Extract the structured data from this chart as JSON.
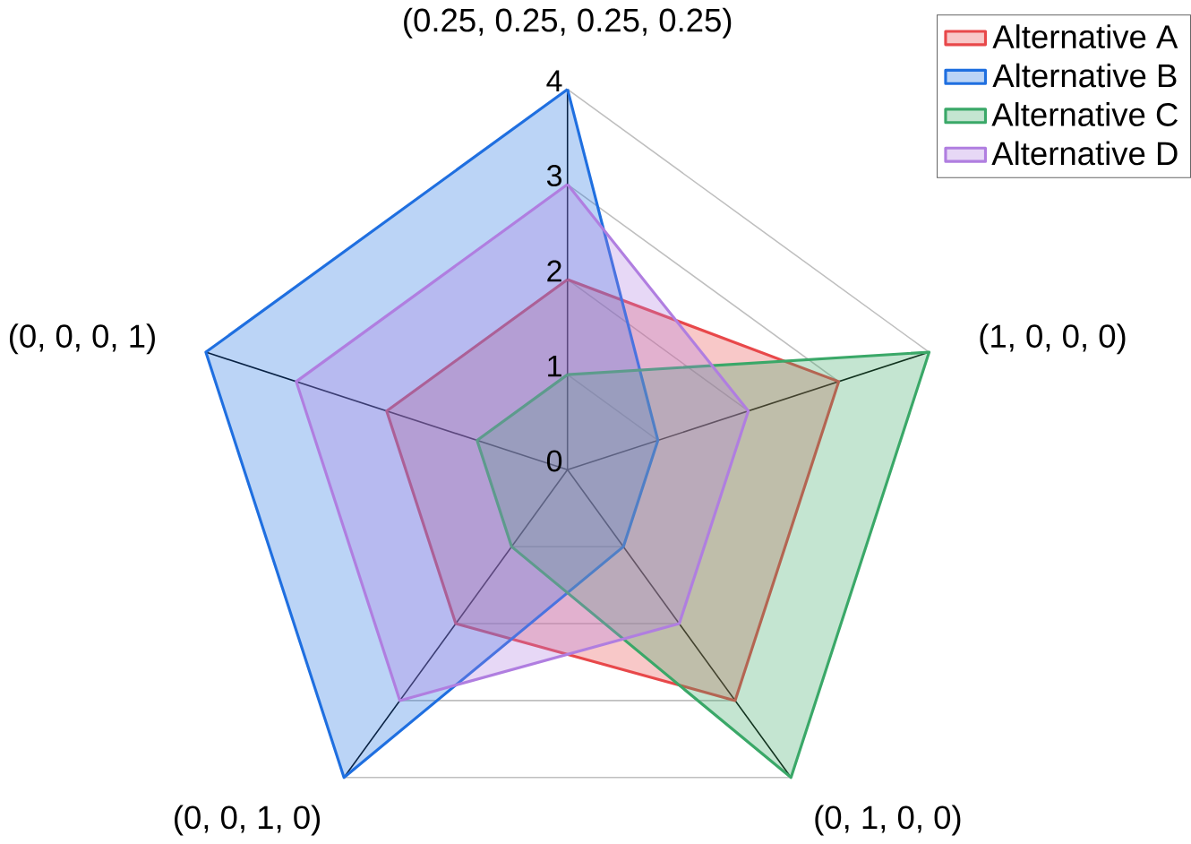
{
  "chart_data": {
    "type": "radar",
    "categories": [
      "(0.25, 0.25, 0.25, 0.25)",
      "(1, 0, 0, 0)",
      "(0, 1, 0, 0)",
      "(0, 0, 1, 0)",
      "(0, 0, 0, 1)"
    ],
    "series": [
      {
        "name": "Alternative A",
        "color": "#e8484a",
        "values": [
          2,
          3,
          3,
          2,
          2
        ]
      },
      {
        "name": "Alternative B",
        "color": "#1f6fe0",
        "values": [
          4,
          1,
          1,
          4,
          4
        ]
      },
      {
        "name": "Alternative C",
        "color": "#3aa868",
        "values": [
          1,
          4,
          4,
          1,
          1
        ]
      },
      {
        "name": "Alternative D",
        "color": "#b07ee0",
        "values": [
          3,
          2,
          2,
          3,
          3
        ]
      }
    ],
    "ylim": [
      0,
      4
    ],
    "yticks": [
      0,
      1,
      2,
      3,
      4
    ],
    "grid": true,
    "legend": "top right"
  }
}
